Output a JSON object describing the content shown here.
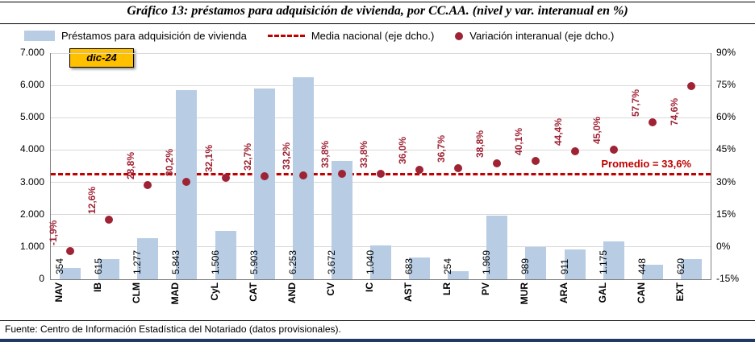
{
  "header": {
    "title": "Gráfico 13: préstamos para adquisición de vivienda, por CC.AA. (nivel y var. interanual en %)"
  },
  "legend": {
    "bars_label": "Préstamos para adquisición de vivienda",
    "line_label": "Media nacional (eje dcho.)",
    "dots_label": "Variación interanual (eje dcho.)"
  },
  "annotations": {
    "date_box": "dic-24",
    "average_label": "Promedio = 33,6%"
  },
  "footer": {
    "source": "Fuente: Centro de Información Estadística del Notariado (datos provisionales)."
  },
  "colors": {
    "bar": "#B8CCE4",
    "dot": "#9E2335",
    "line": "#C00000",
    "date_box_bg": "#FFC000",
    "bottom_bar": "#1F3864"
  },
  "chart_data": {
    "type": "combo-bar-scatter",
    "title": "Gráfico 13: préstamos para adquisición de vivienda, por CC.AA. (nivel y var. interanual en %)",
    "categories": [
      "NAV",
      "IB",
      "CLM",
      "MAD",
      "CyL",
      "CAT",
      "AND",
      "CV",
      "IC",
      "AST",
      "LR",
      "PV",
      "MUR",
      "ARA",
      "GAL",
      "CAN",
      "EXT"
    ],
    "series": [
      {
        "name": "Préstamos para adquisición de vivienda",
        "type": "bar",
        "axis": "left",
        "values": [
          354,
          615,
          1277,
          5843,
          1506,
          5903,
          6253,
          3672,
          1040,
          683,
          254,
          1969,
          989,
          911,
          1175,
          448,
          620
        ],
        "labels": [
          "354",
          "615",
          "1.277",
          "5.843",
          "1.506",
          "5.903",
          "6.253",
          "3.672",
          "1.040",
          "683",
          "254",
          "1.969",
          "989",
          "911",
          "1.175",
          "448",
          "620"
        ]
      },
      {
        "name": "Variación interanual (eje dcho.)",
        "type": "scatter",
        "axis": "right",
        "values": [
          -1.9,
          12.6,
          28.8,
          30.2,
          32.1,
          32.7,
          33.2,
          33.8,
          33.8,
          36.0,
          36.7,
          38.8,
          40.1,
          44.4,
          45.0,
          57.7,
          74.6
        ],
        "labels": [
          "-1,9%",
          "12,6%",
          "28,8%",
          "30,2%",
          "32,1%",
          "32,7%",
          "33,2%",
          "33,8%",
          "33,8%",
          "36,0%",
          "36,7%",
          "38,8%",
          "40,1%",
          "44,4%",
          "45,0%",
          "57,7%",
          "74,6%"
        ]
      }
    ],
    "national_average": 33.6,
    "left_axis": {
      "min": 0,
      "max": 7000,
      "step": 1000,
      "ticks": [
        "0",
        "1.000",
        "2.000",
        "3.000",
        "4.000",
        "5.000",
        "6.000",
        "7.000"
      ]
    },
    "right_axis": {
      "min": -15,
      "max": 90,
      "step": 15,
      "ticks": [
        "-15%",
        "0%",
        "15%",
        "30%",
        "45%",
        "60%",
        "75%",
        "90%"
      ]
    },
    "grid": true,
    "legend_position": "top"
  }
}
